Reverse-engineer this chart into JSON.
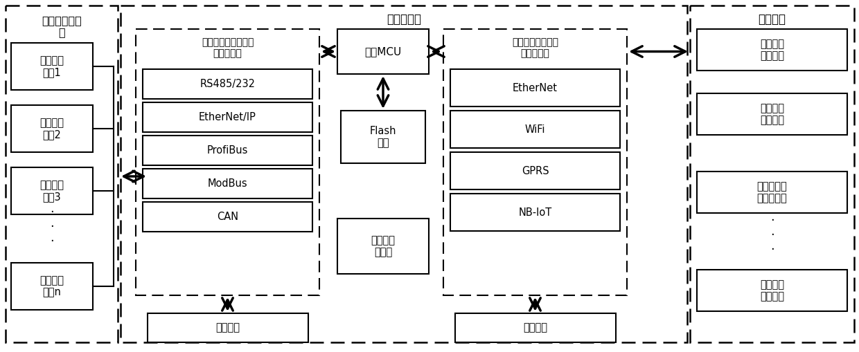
{
  "bg_color": "#ffffff",
  "text_color": "#000000",
  "title_group1": "智能工业装备\n组",
  "title_group2": "数据采集器",
  "title_group3": "云服务器",
  "devices": [
    "智能工业\n装备1",
    "智能工业\n装备2",
    "智能工业\n装备3",
    "智能工业\n装备n"
  ],
  "iot_module_title": "物联网接入组件模块\n（可插拔）",
  "iot_protocols": [
    "RS485/232",
    "EtherNet/IP",
    "ProfiBus",
    "ModBus",
    "CAN"
  ],
  "mcu_label": "控制MCU",
  "flash_label": "Flash\n存储",
  "cloud_collect_label": "云数据收\n集模块",
  "generic_port_label": "通用接口",
  "net_module_title": "网络接入组件模块\n（可插拔）",
  "net_protocols": [
    "EtherNet",
    "WiFi",
    "GPRS",
    "NB-IoT"
  ],
  "generic_port_label2": "通用接口",
  "cloud_modules": [
    "装备注册\n服务模块",
    "装备管理\n服务模块",
    "数据采集参\n数服务模块",
    "其他扩展\n服务模块"
  ]
}
